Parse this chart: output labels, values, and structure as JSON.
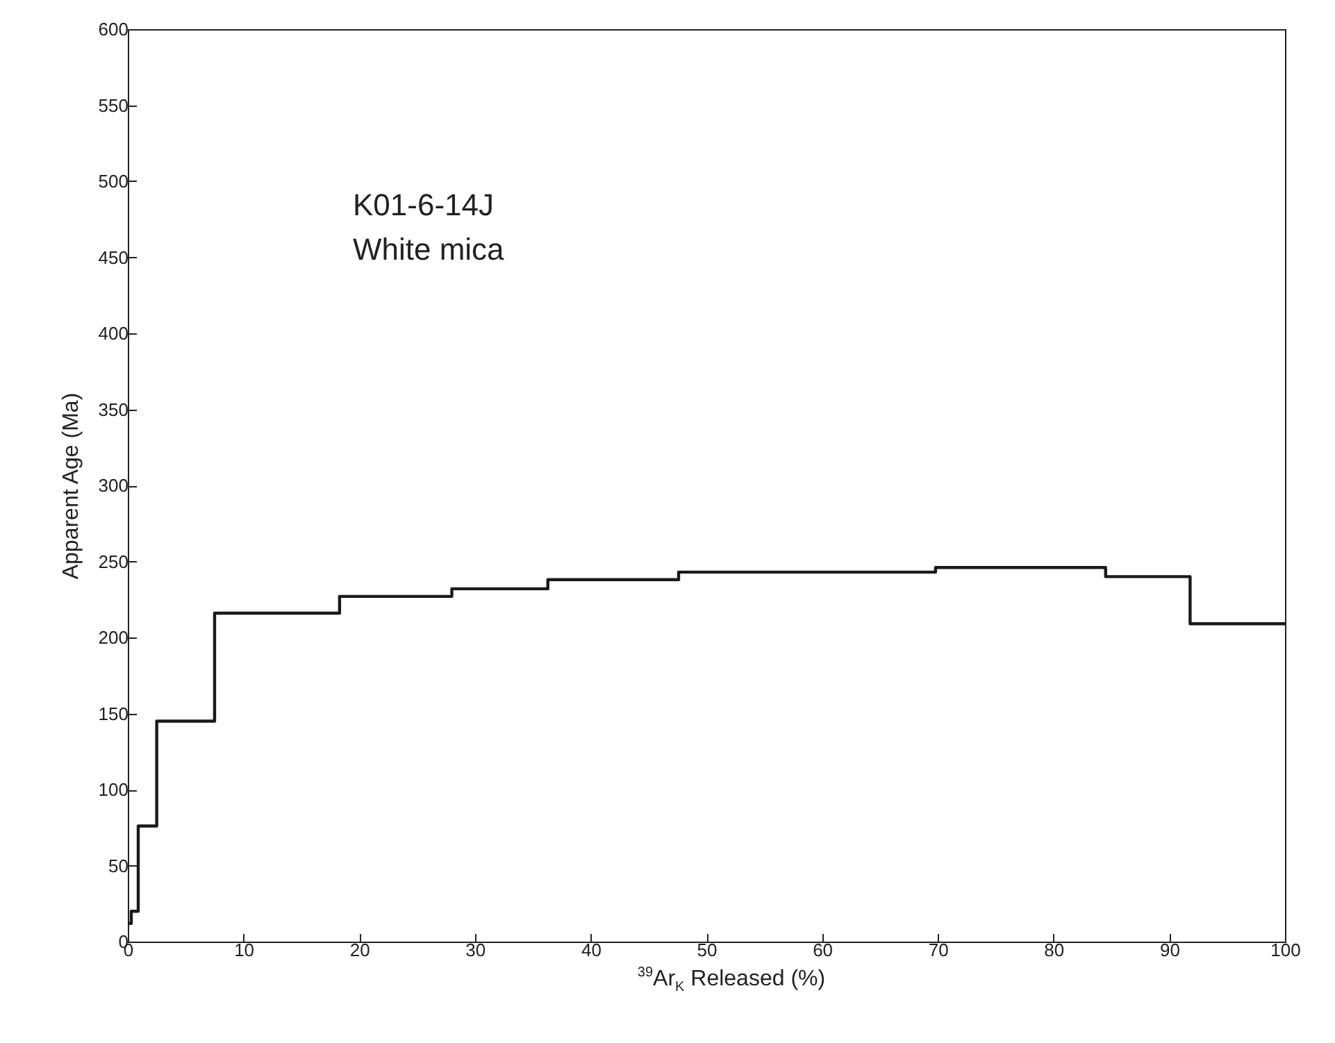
{
  "chart_data": {
    "type": "step",
    "xlabel": "$^{39}$Ar$_{K}$ Released (%)",
    "ylabel": "Apparent Age (Ma)",
    "annotations": [
      "K01-6-14J",
      "White mica"
    ],
    "x": [
      0,
      0.3,
      0.9,
      2.5,
      7.5,
      18.3,
      28,
      36.3,
      47.6,
      69.8,
      84.5,
      91.8,
      100
    ],
    "series": [
      {
        "color": "#1a1a1a",
        "values": [
          12,
          20,
          76,
          145,
          216,
          227,
          232,
          238,
          243,
          246,
          240,
          209,
          209
        ]
      }
    ],
    "xlim": [
      0,
      100
    ],
    "xticks": [
      0,
      10,
      20,
      30,
      40,
      50,
      60,
      70,
      80,
      90,
      100
    ],
    "ylim": [
      0,
      600
    ],
    "yticks": [
      0,
      50,
      100,
      150,
      200,
      250,
      300,
      350,
      400,
      450,
      500,
      550,
      600
    ],
    "line_style": "solid"
  }
}
